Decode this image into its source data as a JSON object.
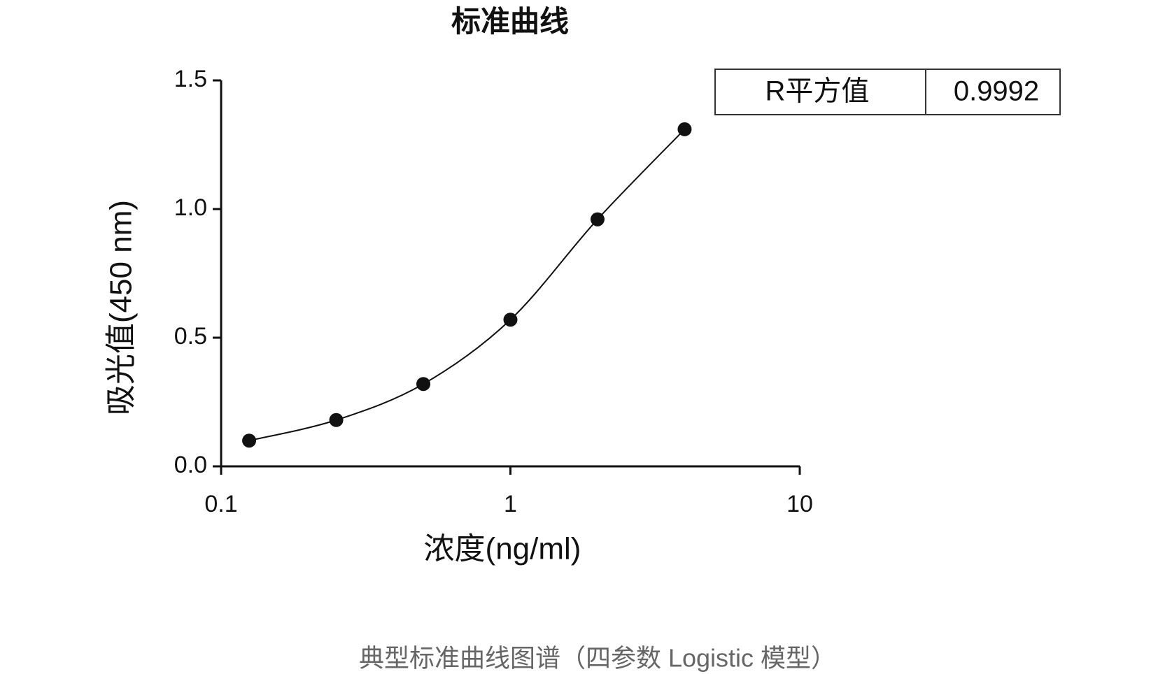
{
  "chart_data": {
    "type": "scatter",
    "title": "标准曲线",
    "x_label": "浓度(ng/ml)",
    "y_label": "吸光值(450 nm)",
    "x": [
      0.125,
      0.25,
      0.5,
      1,
      2,
      4
    ],
    "values": [
      0.1,
      0.18,
      0.32,
      0.57,
      0.96,
      1.31
    ],
    "color": "#111111",
    "x_log": true,
    "xlim": [
      0.1,
      10
    ],
    "xticks": [
      0.1,
      1,
      10
    ],
    "ylim": [
      0,
      1.5
    ],
    "yticks": [
      {
        "value": 0,
        "label": "0.0"
      },
      {
        "value": 0.5,
        "label": "0.5"
      },
      {
        "value": 1,
        "label": "1.0"
      },
      {
        "value": 1.5,
        "label": "1.5"
      }
    ],
    "r_squared_label": "R平方值",
    "r_squared": "0.9992",
    "caption": "典型标准曲线图谱（四参数 Logistic 模型）"
  }
}
